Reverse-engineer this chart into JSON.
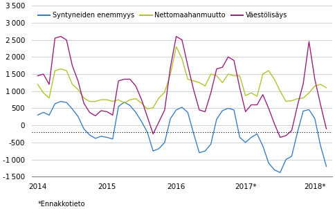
{
  "legend": [
    "Syntyneiden enemmyys",
    "Nettomaahanmuutto",
    "Väestölisäys"
  ],
  "colors": [
    "#3b7fbf",
    "#b5c22e",
    "#9b1f7d"
  ],
  "footnote": "*Ennakkotieto",
  "dotted_line_y": -200,
  "ylim": [
    -1500,
    3500
  ],
  "yticks": [
    -1500,
    -1000,
    -500,
    0,
    500,
    1000,
    1500,
    2000,
    2500,
    3000,
    3500
  ],
  "xtick_labels": [
    "2014",
    "2015",
    "2016",
    "2017*",
    "2018*"
  ],
  "xtick_positions": [
    0,
    12,
    24,
    36,
    48
  ],
  "total_months": 51,
  "syntyneiden": [
    300,
    380,
    300,
    630,
    700,
    670,
    480,
    260,
    -100,
    -280,
    -380,
    -320,
    -350,
    -400,
    550,
    680,
    580,
    380,
    110,
    -200,
    -750,
    -680,
    -500,
    200,
    450,
    530,
    380,
    -230,
    -800,
    -750,
    -550,
    180,
    430,
    500,
    450,
    -350,
    -500,
    -350,
    -250,
    -600,
    -1100,
    -1300,
    -1380,
    -1000,
    -900,
    -200,
    420,
    460,
    200,
    -600,
    -1200
  ],
  "nettomaahanmuutto": [
    1200,
    950,
    800,
    1600,
    1650,
    1600,
    1200,
    1050,
    800,
    700,
    700,
    750,
    750,
    700,
    750,
    650,
    750,
    780,
    650,
    480,
    520,
    800,
    970,
    1500,
    2300,
    1950,
    1350,
    1300,
    1250,
    1150,
    1500,
    1450,
    1250,
    1500,
    1450,
    1450,
    870,
    950,
    850,
    1500,
    1600,
    1350,
    1000,
    700,
    720,
    780,
    800,
    950,
    1150,
    1200,
    1100
  ],
  "vaestonlisays": [
    1450,
    1500,
    1200,
    2550,
    2600,
    2500,
    1750,
    1300,
    650,
    380,
    280,
    430,
    400,
    300,
    1300,
    1350,
    1350,
    1150,
    750,
    250,
    -250,
    100,
    450,
    1700,
    2600,
    2500,
    1750,
    1050,
    450,
    400,
    950,
    1650,
    1700,
    2000,
    1900,
    1100,
    400,
    600,
    600,
    900,
    500,
    50,
    -350,
    -300,
    -150,
    580,
    1220,
    2450,
    1350,
    600,
    -100
  ]
}
